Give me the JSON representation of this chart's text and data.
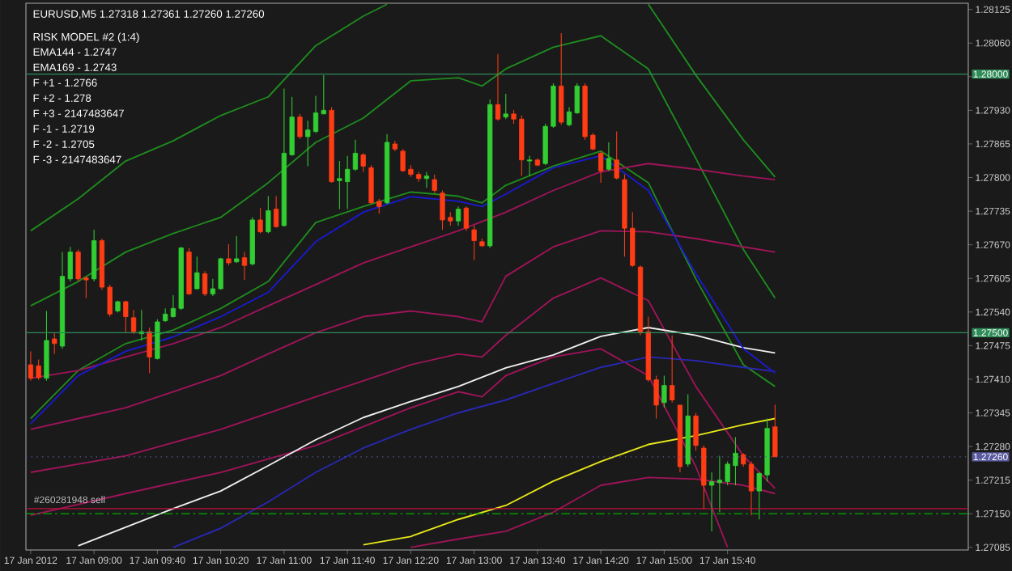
{
  "chart_data": {
    "type": "candlestick",
    "title": "EURUSD,M5  1.27318 1.27361 1.27260 1.27260",
    "annotations": [
      "RISK MODEL #2 (1:4)",
      "EMA144 - 1.2747",
      "EMA169 - 1.2743",
      "F +1 - 1.2766",
      "F +2 - 1.278",
      "F +3 - 2147483647",
      "F -1 - 1.2719",
      "F -2 - 1.2705",
      "F -3 - 2147483647"
    ],
    "xlim": [
      "2012-01-17T08:17",
      "2012-01-17T18:12"
    ],
    "ylim": [
      1.2708,
      1.28137
    ],
    "xticks": [
      {
        "value": "2012-01-17T08:20",
        "label": "17 Jan 2012"
      },
      {
        "value": "2012-01-17T09:00",
        "label": "17 Jan 09:00"
      },
      {
        "value": "2012-01-17T09:40",
        "label": "17 Jan 09:40"
      },
      {
        "value": "2012-01-17T10:20",
        "label": "17 Jan 10:20"
      },
      {
        "value": "2012-01-17T11:00",
        "label": "17 Jan 11:00"
      },
      {
        "value": "2012-01-17T11:40",
        "label": "17 Jan 11:40"
      },
      {
        "value": "2012-01-17T12:20",
        "label": "17 Jan 12:20"
      },
      {
        "value": "2012-01-17T13:00",
        "label": "17 Jan 13:00"
      },
      {
        "value": "2012-01-17T13:40",
        "label": "17 Jan 13:40"
      },
      {
        "value": "2012-01-17T14:20",
        "label": "17 Jan 14:20"
      },
      {
        "value": "2012-01-17T15:00",
        "label": "17 Jan 15:00"
      },
      {
        "value": "2012-01-17T15:40",
        "label": "17 Jan 15:40"
      }
    ],
    "yticks": [
      1.27085,
      {
        "value": 1.2715,
        "label": "1.27150"
      },
      1.27215,
      {
        "value": 1.2728,
        "label": "1.27280"
      },
      1.27345,
      {
        "value": 1.2741,
        "label": "1.27410"
      },
      1.27475,
      {
        "value": 1.2754,
        "label": "1.27540"
      },
      1.27605,
      {
        "value": 1.2767,
        "label": "1.27670"
      },
      1.27735,
      {
        "value": 1.278,
        "label": "1.27800"
      },
      1.27865,
      {
        "value": 1.2793,
        "label": "1.27930"
      },
      {
        "value": 1.27995,
        "label": null
      },
      {
        "value": 1.2806,
        "label": "1.28060"
      },
      1.28125
    ],
    "ref_lines": [
      {
        "axis": "y",
        "value": 1.28,
        "label": "1.28000",
        "color": "#2e8b57"
      },
      {
        "axis": "y",
        "value": 1.275,
        "label": "1.27500",
        "color": "#2e8b57"
      },
      {
        "axis": "y",
        "value": 1.2726,
        "label": "1.27260",
        "color": "#5a5aa0",
        "line_style": "dotted"
      },
      {
        "axis": "y",
        "value": 1.2716,
        "label": "#260281948 sell",
        "color": "#c0103c"
      },
      {
        "axis": "y",
        "value": 1.2715,
        "color": "#00b000",
        "line_style": "dashed"
      }
    ],
    "series": [
      {
        "type": "line",
        "color": "#1e8c1e",
        "x": [
          "2012-01-17T08:20",
          "2012-01-17T08:50",
          "2012-01-17T09:20",
          "2012-01-17T09:50",
          "2012-01-17T10:20",
          "2012-01-17T10:50",
          "2012-01-17T11:20",
          "2012-01-17T11:50",
          "2012-01-17T12:05",
          "2012-01-17T13:20",
          "2012-01-17T14:50",
          "2012-01-17T15:20",
          "2012-01-17T15:50",
          "2012-01-17T16:10"
        ],
        "values": [
          1.27697,
          1.27759,
          1.27832,
          1.27871,
          1.2792,
          1.27956,
          1.28055,
          1.28112,
          1.28135,
          null,
          1.28135,
          1.27998,
          1.27873,
          1.27801
        ]
      },
      {
        "type": "line",
        "color": "#1e8c1e",
        "x": [
          "2012-01-17T08:20",
          "2012-01-17T08:50",
          "2012-01-17T09:20",
          "2012-01-17T09:50",
          "2012-01-17T10:20",
          "2012-01-17T10:50",
          "2012-01-17T11:20",
          "2012-01-17T11:50",
          "2012-01-17T12:20",
          "2012-01-17T12:50",
          "2012-01-17T13:05",
          "2012-01-17T13:20",
          "2012-01-17T13:50",
          "2012-01-17T14:20",
          "2012-01-17T14:50",
          "2012-01-17T15:20",
          "2012-01-17T15:50",
          "2012-01-17T16:10"
        ],
        "values": [
          1.27552,
          1.27599,
          1.27656,
          1.27692,
          1.27723,
          1.2779,
          1.27868,
          1.27915,
          1.27987,
          1.27993,
          1.27977,
          1.2801,
          1.28052,
          1.28074,
          1.2801,
          1.27837,
          1.27661,
          1.27567
        ]
      },
      {
        "type": "line",
        "color": "#1e8c1e",
        "x": [
          "2012-01-17T08:20",
          "2012-01-17T08:50",
          "2012-01-17T09:20",
          "2012-01-17T09:50",
          "2012-01-17T10:20",
          "2012-01-17T10:50",
          "2012-01-17T11:20",
          "2012-01-17T11:50",
          "2012-01-17T12:20",
          "2012-01-17T12:50",
          "2012-01-17T13:05",
          "2012-01-17T13:20",
          "2012-01-17T13:50",
          "2012-01-17T14:20",
          "2012-01-17T14:50",
          "2012-01-17T15:20",
          "2012-01-17T15:50",
          "2012-01-17T16:10"
        ],
        "values": [
          1.27334,
          1.27427,
          1.27479,
          1.27505,
          1.27547,
          1.27599,
          1.27713,
          1.27744,
          1.27772,
          1.27764,
          1.27751,
          1.27785,
          1.27822,
          1.27851,
          1.2779,
          1.27604,
          1.27438,
          1.27396
        ]
      },
      {
        "type": "line",
        "color": "#a0145a",
        "x": [
          "2012-01-17T08:20",
          "2012-01-17T08:50",
          "2012-01-17T09:20",
          "2012-01-17T09:50",
          "2012-01-17T10:20",
          "2012-01-17T10:50",
          "2012-01-17T11:20",
          "2012-01-17T11:50",
          "2012-01-17T12:20",
          "2012-01-17T12:50",
          "2012-01-17T13:20",
          "2012-01-17T13:50",
          "2012-01-17T14:20",
          "2012-01-17T14:50",
          "2012-01-17T15:20",
          "2012-01-17T15:50",
          "2012-01-17T16:10"
        ],
        "values": [
          1.27412,
          1.27427,
          1.27453,
          1.27479,
          1.2751,
          1.27552,
          1.27593,
          1.27635,
          1.27666,
          1.27697,
          1.27733,
          1.27775,
          1.27811,
          1.27827,
          1.27816,
          1.27803,
          1.27796
        ]
      },
      {
        "type": "line",
        "color": "#a0145a",
        "x": [
          "2012-01-17T08:20",
          "2012-01-17T08:50",
          "2012-01-17T09:20",
          "2012-01-17T09:50",
          "2012-01-17T10:20",
          "2012-01-17T10:50",
          "2012-01-17T11:20",
          "2012-01-17T11:50",
          "2012-01-17T12:20",
          "2012-01-17T12:50",
          "2012-01-17T13:05",
          "2012-01-17T13:20",
          "2012-01-17T13:50",
          "2012-01-17T14:20",
          "2012-01-17T14:50",
          "2012-01-17T15:20",
          "2012-01-17T15:50",
          "2012-01-17T16:10"
        ],
        "values": [
          1.27313,
          1.27334,
          1.27355,
          1.27386,
          1.27417,
          1.27459,
          1.275,
          1.27531,
          1.27542,
          1.27531,
          1.27521,
          1.27609,
          1.27666,
          1.27697,
          1.27695,
          1.27682,
          1.27666,
          1.27656
        ]
      },
      {
        "type": "line",
        "color": "#a0145a",
        "x": [
          "2012-01-17T08:20",
          "2012-01-17T09:20",
          "2012-01-17T10:20",
          "2012-01-17T11:20",
          "2012-01-17T12:20",
          "2012-01-17T12:50",
          "2012-01-17T13:05",
          "2012-01-17T13:20",
          "2012-01-17T13:50",
          "2012-01-17T14:20",
          "2012-01-17T14:50",
          "2012-01-17T15:20",
          "2012-01-17T15:50",
          "2012-01-17T16:10"
        ],
        "values": [
          1.2723,
          1.27262,
          1.27313,
          1.27376,
          1.27438,
          1.27459,
          1.27453,
          1.27495,
          1.27567,
          1.27606,
          1.27562,
          1.27396,
          1.27262,
          1.27199
        ]
      },
      {
        "type": "line",
        "color": "#a0145a",
        "x": [
          "2012-01-17T08:20",
          "2012-01-17T09:20",
          "2012-01-17T10:20",
          "2012-01-17T11:20",
          "2012-01-17T12:20",
          "2012-01-17T12:50",
          "2012-01-17T13:05",
          "2012-01-17T13:20",
          "2012-01-17T13:50",
          "2012-01-17T14:20",
          "2012-01-17T14:50",
          "2012-01-17T15:20",
          "2012-01-17T15:40"
        ],
        "values": [
          1.27147,
          1.27189,
          1.2723,
          1.27282,
          1.27355,
          1.27386,
          1.27376,
          1.27417,
          1.27453,
          1.27469,
          1.27417,
          1.27241,
          1.27085
        ]
      },
      {
        "type": "line",
        "color": "#a0145a",
        "x": [
          "2012-01-17T12:20",
          "2012-01-17T12:50",
          "2012-01-17T13:20",
          "2012-01-17T13:50",
          "2012-01-17T14:20",
          "2012-01-17T14:50",
          "2012-01-17T15:20",
          "2012-01-17T15:50",
          "2012-01-17T16:10"
        ],
        "values": [
          1.27085,
          1.27101,
          1.27116,
          1.27153,
          1.27205,
          1.2722,
          1.27217,
          1.27205,
          1.27189
        ]
      },
      {
        "type": "line",
        "color": "#2828b4",
        "x": [
          "2012-01-17T09:50",
          "2012-01-17T10:20",
          "2012-01-17T10:50",
          "2012-01-17T11:20",
          "2012-01-17T11:50",
          "2012-01-17T12:20",
          "2012-01-17T12:50",
          "2012-01-17T13:20",
          "2012-01-17T13:50",
          "2012-01-17T14:20",
          "2012-01-17T14:50",
          "2012-01-17T15:20",
          "2012-01-17T15:50",
          "2012-01-17T16:10"
        ],
        "values": [
          1.27085,
          1.27122,
          1.27173,
          1.2723,
          1.27277,
          1.27313,
          1.27345,
          1.2737,
          1.27402,
          1.27433,
          1.27453,
          1.27446,
          1.27433,
          1.27425
        ]
      },
      {
        "type": "line",
        "color": "#f0f0f0",
        "x": [
          "2012-01-17T08:50",
          "2012-01-17T09:20",
          "2012-01-17T09:50",
          "2012-01-17T10:20",
          "2012-01-17T10:50",
          "2012-01-17T11:20",
          "2012-01-17T11:50",
          "2012-01-17T12:20",
          "2012-01-17T12:50",
          "2012-01-17T13:20",
          "2012-01-17T13:50",
          "2012-01-17T14:20",
          "2012-01-17T14:50",
          "2012-01-17T15:20",
          "2012-01-17T15:50",
          "2012-01-17T16:10"
        ],
        "values": [
          1.27088,
          1.27124,
          1.2716,
          1.27194,
          1.27243,
          1.27293,
          1.27336,
          1.27367,
          1.27396,
          1.27432,
          1.27457,
          1.27493,
          1.2751,
          1.27495,
          1.27471,
          1.27461
        ]
      },
      {
        "type": "line",
        "color": "#e8e81a",
        "x": [
          "2012-01-17T11:50",
          "2012-01-17T12:20",
          "2012-01-17T12:50",
          "2012-01-17T13:20",
          "2012-01-17T13:50",
          "2012-01-17T14:20",
          "2012-01-17T14:50",
          "2012-01-17T15:20",
          "2012-01-17T15:50",
          "2012-01-17T16:10"
        ],
        "values": [
          1.2709,
          1.27106,
          1.27139,
          1.27166,
          1.27213,
          1.27251,
          1.27284,
          1.27301,
          1.27322,
          1.27334
        ]
      },
      {
        "type": "line",
        "color": "#1a1ad0",
        "x": [
          "2012-01-17T08:20",
          "2012-01-17T08:50",
          "2012-01-17T09:20",
          "2012-01-17T09:50",
          "2012-01-17T10:20",
          "2012-01-17T10:50",
          "2012-01-17T11:20",
          "2012-01-17T11:50",
          "2012-01-17T12:20",
          "2012-01-17T12:50",
          "2012-01-17T13:05",
          "2012-01-17T13:20",
          "2012-01-17T13:50",
          "2012-01-17T14:20",
          "2012-01-17T14:50",
          "2012-01-17T15:20",
          "2012-01-17T15:50",
          "2012-01-17T16:10"
        ],
        "values": [
          1.27324,
          1.27417,
          1.27464,
          1.27492,
          1.27531,
          1.27578,
          1.27676,
          1.27733,
          1.27763,
          1.27754,
          1.27744,
          1.27768,
          1.27819,
          1.27842,
          1.27775,
          1.27614,
          1.27469,
          1.27422
        ]
      },
      {
        "type": "candlestick",
        "color": "#32cd32",
        "x": [
          "2012-01-17T08:30",
          "2012-01-17T08:40",
          "2012-01-17T08:45",
          "2012-01-17T09:00",
          "2012-01-17T09:15",
          "2012-01-17T09:30",
          "2012-01-17T09:40",
          "2012-01-17T09:45",
          "2012-01-17T09:50",
          "2012-01-17T09:55",
          "2012-01-17T10:05",
          "2012-01-17T10:15",
          "2012-01-17T10:20",
          "2012-01-17T10:30",
          "2012-01-17T10:40",
          "2012-01-17T10:50",
          "2012-01-17T11:00",
          "2012-01-17T11:05",
          "2012-01-17T11:15",
          "2012-01-17T11:20",
          "2012-01-17T11:25",
          "2012-01-17T11:35",
          "2012-01-17T11:40",
          "2012-01-17T11:45",
          "2012-01-17T12:05",
          "2012-01-17T12:30",
          "2012-01-17T12:50",
          "2012-01-17T13:10",
          "2012-01-17T13:20",
          "2012-01-17T13:35",
          "2012-01-17T13:45",
          "2012-01-17T13:50",
          "2012-01-17T14:00",
          "2012-01-17T14:05",
          "2012-01-17T14:25",
          "2012-01-17T15:00",
          "2012-01-17T15:15",
          "2012-01-17T15:30",
          "2012-01-17T15:35",
          "2012-01-17T15:40",
          "2012-01-17T15:45",
          "2012-01-17T16:00",
          "2012-01-17T16:05"
        ],
        "ohlc": [
          [
            1.27412,
            1.27542,
            1.27407,
            1.27485
          ],
          [
            1.27474,
            1.27656,
            1.27469,
            1.27609
          ],
          [
            1.27604,
            1.27666,
            1.27599,
            1.27656
          ],
          [
            1.27604,
            1.27699,
            1.27599,
            1.27678
          ],
          [
            1.27542,
            1.27562,
            1.27539,
            1.2756
          ],
          [
            1.27498,
            1.27544,
            1.27485,
            1.27502
          ],
          [
            1.2745,
            1.27526,
            1.27448,
            1.27521
          ],
          [
            1.27523,
            1.27547,
            1.27521,
            1.27536
          ],
          [
            1.27531,
            1.27573,
            1.27529,
            1.27547
          ],
          [
            1.27547,
            1.27666,
            1.27544,
            1.27664
          ],
          [
            1.27585,
            1.27647,
            1.27583,
            1.27616
          ],
          [
            1.27575,
            1.27604,
            1.27571,
            1.27585
          ],
          [
            1.27585,
            1.27645,
            1.27583,
            1.27643
          ],
          [
            1.27637,
            1.27687,
            1.27635,
            1.27643
          ],
          [
            1.27633,
            1.27723,
            1.2763,
            1.27718
          ],
          [
            1.27695,
            1.27764,
            1.27692,
            1.27736
          ],
          [
            1.27707,
            1.27972,
            1.27705,
            1.27847
          ],
          [
            1.27844,
            1.27956,
            1.27842,
            1.27917
          ],
          [
            1.27879,
            1.2791,
            1.27822,
            1.27892
          ],
          [
            1.27889,
            1.27958,
            1.27886,
            1.27925
          ],
          [
            1.27923,
            1.27998,
            1.27923,
            1.2793
          ],
          [
            1.27794,
            1.27832,
            1.27739,
            1.27798
          ],
          [
            1.27792,
            1.27842,
            1.27739,
            1.27816
          ],
          [
            1.27816,
            1.27873,
            1.27813,
            1.27847
          ],
          [
            1.27751,
            1.27884,
            1.27749,
            1.27868
          ],
          [
            1.27798,
            1.27811,
            1.2778,
            1.27803
          ],
          [
            1.27716,
            1.27744,
            1.27707,
            1.27739
          ],
          [
            1.27668,
            1.27951,
            1.27664,
            1.27941
          ],
          [
            1.27917,
            1.27962,
            1.27913,
            1.27923
          ],
          [
            1.27832,
            1.27842,
            1.27803,
            1.27834
          ],
          [
            1.27827,
            1.27904,
            1.27824,
            1.27899
          ],
          [
            1.27899,
            1.27982,
            1.27896,
            1.27977
          ],
          [
            1.27902,
            1.27936,
            1.27899,
            1.27927
          ],
          [
            1.27925,
            1.27982,
            1.27923,
            1.27977
          ],
          [
            1.27816,
            1.27868,
            1.27813,
            1.27837
          ],
          [
            1.27365,
            1.27417,
            1.27355,
            1.27398
          ],
          [
            1.27246,
            1.27381,
            1.27241,
            1.27339
          ],
          [
            1.27205,
            1.2723,
            1.27116,
            1.27212
          ],
          [
            1.2721,
            1.27262,
            1.27153,
            1.27215
          ],
          [
            1.27212,
            1.27251,
            1.27205,
            1.27246
          ],
          [
            1.27243,
            1.27298,
            1.27205,
            1.27267
          ],
          [
            1.27194,
            1.2723,
            1.27139,
            1.27228
          ],
          [
            1.27225,
            1.27334,
            1.27212,
            1.27315
          ]
        ]
      },
      {
        "type": "candlestick",
        "color": "#ff3c14",
        "x": [
          "2012-01-17T08:20",
          "2012-01-17T08:25",
          "2012-01-17T08:35",
          "2012-01-17T08:50",
          "2012-01-17T08:55",
          "2012-01-17T09:05",
          "2012-01-17T09:10",
          "2012-01-17T09:20",
          "2012-01-17T09:25",
          "2012-01-17T09:35",
          "2012-01-17T10:00",
          "2012-01-17T10:10",
          "2012-01-17T10:25",
          "2012-01-17T10:35",
          "2012-01-17T10:45",
          "2012-01-17T10:55",
          "2012-01-17T11:10",
          "2012-01-17T11:30",
          "2012-01-17T11:50",
          "2012-01-17T11:55",
          "2012-01-17T12:00",
          "2012-01-17T12:10",
          "2012-01-17T12:15",
          "2012-01-17T12:20",
          "2012-01-17T12:25",
          "2012-01-17T12:35",
          "2012-01-17T12:40",
          "2012-01-17T12:45",
          "2012-01-17T12:55",
          "2012-01-17T13:00",
          "2012-01-17T13:05",
          "2012-01-17T13:15",
          "2012-01-17T13:25",
          "2012-01-17T13:30",
          "2012-01-17T13:40",
          "2012-01-17T13:55",
          "2012-01-17T14:10",
          "2012-01-17T14:15",
          "2012-01-17T14:20",
          "2012-01-17T14:30",
          "2012-01-17T14:35",
          "2012-01-17T14:40",
          "2012-01-17T14:45",
          "2012-01-17T14:50",
          "2012-01-17T14:55",
          "2012-01-17T15:05",
          "2012-01-17T15:10",
          "2012-01-17T15:20",
          "2012-01-17T15:25",
          "2012-01-17T15:50",
          "2012-01-17T15:55",
          "2012-01-17T16:10"
        ],
        "ohlc": [
          [
            1.27438,
            1.27464,
            1.27407,
            1.27412
          ],
          [
            1.27436,
            1.27448,
            1.27409,
            1.27413
          ],
          [
            1.27488,
            1.275,
            1.27459,
            1.27479
          ],
          [
            1.27656,
            1.27661,
            1.27599,
            1.27604
          ],
          [
            1.27606,
            1.27609,
            1.27567,
            1.27602
          ],
          [
            1.27678,
            1.27682,
            1.27583,
            1.27588
          ],
          [
            1.27588,
            1.27593,
            1.27531,
            1.27536
          ],
          [
            1.2756,
            1.27562,
            1.275,
            1.27531
          ],
          [
            1.27529,
            1.27544,
            1.27498,
            1.27502
          ],
          [
            1.27502,
            1.2751,
            1.27422,
            1.27453
          ],
          [
            1.27656,
            1.27664,
            1.27573,
            1.27575
          ],
          [
            1.27614,
            1.27619,
            1.27571,
            1.27575
          ],
          [
            1.27643,
            1.27671,
            1.2763,
            1.27635
          ],
          [
            1.27645,
            1.27656,
            1.27602,
            1.2763
          ],
          [
            1.27718,
            1.27741,
            1.27692,
            1.27695
          ],
          [
            1.27739,
            1.27764,
            1.27703,
            1.27705
          ],
          [
            1.27917,
            1.27923,
            1.27875,
            1.27879
          ],
          [
            1.2793,
            1.27936,
            1.2779,
            1.27792
          ],
          [
            1.27844,
            1.27847,
            1.27811,
            1.27822
          ],
          [
            1.27819,
            1.27824,
            1.27749,
            1.27751
          ],
          [
            1.27754,
            1.27759,
            1.2773,
            1.27744
          ],
          [
            1.27865,
            1.27871,
            1.27851,
            1.27855
          ],
          [
            1.27851,
            1.27855,
            1.27811,
            1.27813
          ],
          [
            1.27816,
            1.27824,
            1.27801,
            1.27806
          ],
          [
            1.27806,
            1.27811,
            1.27792,
            1.27798
          ],
          [
            1.27796,
            1.27806,
            1.2777,
            1.27775
          ],
          [
            1.2777,
            1.27775,
            1.27699,
            1.27718
          ],
          [
            1.27723,
            1.27733,
            1.27707,
            1.27716
          ],
          [
            1.27741,
            1.27744,
            1.27697,
            1.27702
          ],
          [
            1.27699,
            1.27707,
            1.2764,
            1.27678
          ],
          [
            1.27676,
            1.27682,
            1.27666,
            1.27668
          ],
          [
            1.27941,
            1.28039,
            1.2791,
            1.27913
          ],
          [
            1.27923,
            1.2793,
            1.27904,
            1.27913
          ],
          [
            1.27913,
            1.2792,
            1.27803,
            1.27834
          ],
          [
            1.27834,
            1.27837,
            1.27822,
            1.27824
          ],
          [
            1.27977,
            1.28079,
            1.27902,
            1.27907
          ],
          [
            1.27977,
            1.27982,
            1.27873,
            1.27879
          ],
          [
            1.27882,
            1.27886,
            1.27853,
            1.27855
          ],
          [
            1.27847,
            1.27851,
            1.2779,
            1.27813
          ],
          [
            1.27834,
            1.27889,
            1.27796,
            1.27799
          ],
          [
            1.27796,
            1.27806,
            1.27647,
            1.27702
          ],
          [
            1.27702,
            1.27733,
            1.27627,
            1.2763
          ],
          [
            1.27627,
            1.2763,
            1.27495,
            1.275
          ],
          [
            1.27502,
            1.27531,
            1.27405,
            1.27409
          ],
          [
            1.27409,
            1.27417,
            1.27334,
            1.2736
          ],
          [
            1.27398,
            1.27495,
            1.27365,
            1.2737
          ],
          [
            1.2736,
            1.2736,
            1.2723,
            1.27241
          ],
          [
            1.27339,
            1.27345,
            1.27272,
            1.27282
          ],
          [
            1.27277,
            1.27282,
            1.27158,
            1.27205
          ],
          [
            1.27264,
            1.27267,
            1.27241,
            1.27246
          ],
          [
            1.27246,
            1.27251,
            1.27147,
            1.27194
          ],
          [
            1.27318,
            1.27361,
            1.2726,
            1.2726
          ]
        ]
      }
    ]
  }
}
